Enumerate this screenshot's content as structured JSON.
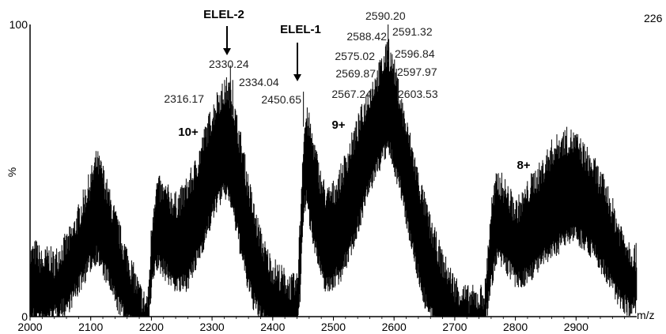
{
  "chart_data": {
    "type": "line",
    "title": "",
    "xlabel": "m/z",
    "ylabel": "%",
    "corner_label": "226",
    "xlim": [
      2000,
      3000
    ],
    "ylim": [
      0,
      100
    ],
    "x_ticks": [
      2000,
      2100,
      2200,
      2300,
      2400,
      2500,
      2600,
      2700,
      2800,
      2900
    ],
    "y_tick_labels": [
      {
        "value": 100,
        "label": "100"
      },
      {
        "value": 0,
        "label": "0"
      }
    ],
    "grid": false,
    "envelope": {
      "x": [
        2000,
        2010,
        2020,
        2030,
        2040,
        2050,
        2060,
        2070,
        2080,
        2090,
        2100,
        2110,
        2120,
        2130,
        2140,
        2150,
        2160,
        2170,
        2180,
        2190,
        2195,
        2200,
        2205,
        2210,
        2220,
        2230,
        2240,
        2250,
        2260,
        2270,
        2280,
        2290,
        2300,
        2310,
        2320,
        2325,
        2330,
        2335,
        2340,
        2350,
        2360,
        2370,
        2380,
        2390,
        2400,
        2410,
        2420,
        2430,
        2440,
        2445,
        2450,
        2455,
        2460,
        2470,
        2480,
        2490,
        2500,
        2510,
        2520,
        2530,
        2540,
        2550,
        2560,
        2570,
        2580,
        2590,
        2600,
        2610,
        2620,
        2630,
        2640,
        2650,
        2660,
        2670,
        2680,
        2690,
        2700,
        2710,
        2720,
        2730,
        2740,
        2750,
        2760,
        2770,
        2780,
        2790,
        2800,
        2810,
        2820,
        2830,
        2840,
        2850,
        2860,
        2870,
        2880,
        2890,
        2900,
        2910,
        2920,
        2930,
        2940,
        2950,
        2960,
        2970,
        2980,
        2990,
        3000
      ],
      "upper": [
        20,
        22,
        18,
        20,
        18,
        22,
        24,
        28,
        34,
        40,
        46,
        53,
        48,
        40,
        33,
        26,
        20,
        14,
        8,
        4,
        6,
        28,
        40,
        44,
        42,
        40,
        38,
        40,
        44,
        48,
        55,
        62,
        68,
        74,
        76,
        78,
        76,
        72,
        66,
        56,
        44,
        34,
        26,
        20,
        16,
        14,
        12,
        10,
        10,
        30,
        58,
        68,
        65,
        55,
        45,
        40,
        42,
        46,
        52,
        58,
        64,
        70,
        76,
        80,
        85,
        90,
        84,
        74,
        64,
        56,
        46,
        38,
        30,
        24,
        18,
        14,
        10,
        8,
        6,
        6,
        6,
        8,
        36,
        46,
        44,
        40,
        36,
        38,
        42,
        46,
        48,
        52,
        56,
        58,
        60,
        60,
        59,
        56,
        53,
        50,
        46,
        42,
        36,
        30,
        26,
        22,
        20
      ],
      "lower": [
        2,
        4,
        2,
        3,
        4,
        6,
        7,
        10,
        14,
        18,
        22,
        25,
        20,
        16,
        10,
        6,
        2,
        0,
        0,
        0,
        0,
        12,
        20,
        22,
        20,
        17,
        15,
        14,
        16,
        20,
        26,
        32,
        38,
        44,
        46,
        47,
        44,
        40,
        34,
        24,
        14,
        8,
        4,
        2,
        0,
        0,
        0,
        0,
        0,
        10,
        38,
        44,
        38,
        28,
        18,
        14,
        16,
        18,
        22,
        28,
        34,
        42,
        48,
        54,
        58,
        62,
        56,
        48,
        38,
        28,
        18,
        10,
        4,
        0,
        0,
        0,
        0,
        0,
        0,
        0,
        0,
        0,
        16,
        24,
        22,
        20,
        16,
        16,
        18,
        20,
        22,
        24,
        26,
        28,
        30,
        32,
        32,
        30,
        28,
        26,
        22,
        18,
        14,
        10,
        8,
        6,
        8
      ]
    },
    "peak_labels": [
      {
        "x": 2316.17,
        "y": 76,
        "label": "2316.17"
      },
      {
        "x": 2330.24,
        "y": 86,
        "label": "2330.24"
      },
      {
        "x": 2334.04,
        "y": 81,
        "label": "2334.04"
      },
      {
        "x": 2450.65,
        "y": 77,
        "label": "2450.65"
      },
      {
        "x": 2567.24,
        "y": 72,
        "label": "2567.24"
      },
      {
        "x": 2569.87,
        "y": 81,
        "label": "2569.87"
      },
      {
        "x": 2575.02,
        "y": 87,
        "label": "2575.02"
      },
      {
        "x": 2588.42,
        "y": 94,
        "label": "2588.42"
      },
      {
        "x": 2590.2,
        "y": 100,
        "label": "2590.20"
      },
      {
        "x": 2591.32,
        "y": 95,
        "label": "2591.32"
      },
      {
        "x": 2596.84,
        "y": 88,
        "label": "2596.84"
      },
      {
        "x": 2597.97,
        "y": 83,
        "label": "2597.97"
      },
      {
        "x": 2603.53,
        "y": 71,
        "label": "2603.53"
      }
    ],
    "annotations": [
      {
        "text": "ELEL-2",
        "x": 2320,
        "arrow": true
      },
      {
        "text": "ELEL-1",
        "x": 2445,
        "arrow": true
      },
      {
        "text": "10+",
        "x": 2265
      },
      {
        "text": "9+",
        "x": 2530
      },
      {
        "text": "8+",
        "x": 2840
      }
    ]
  }
}
